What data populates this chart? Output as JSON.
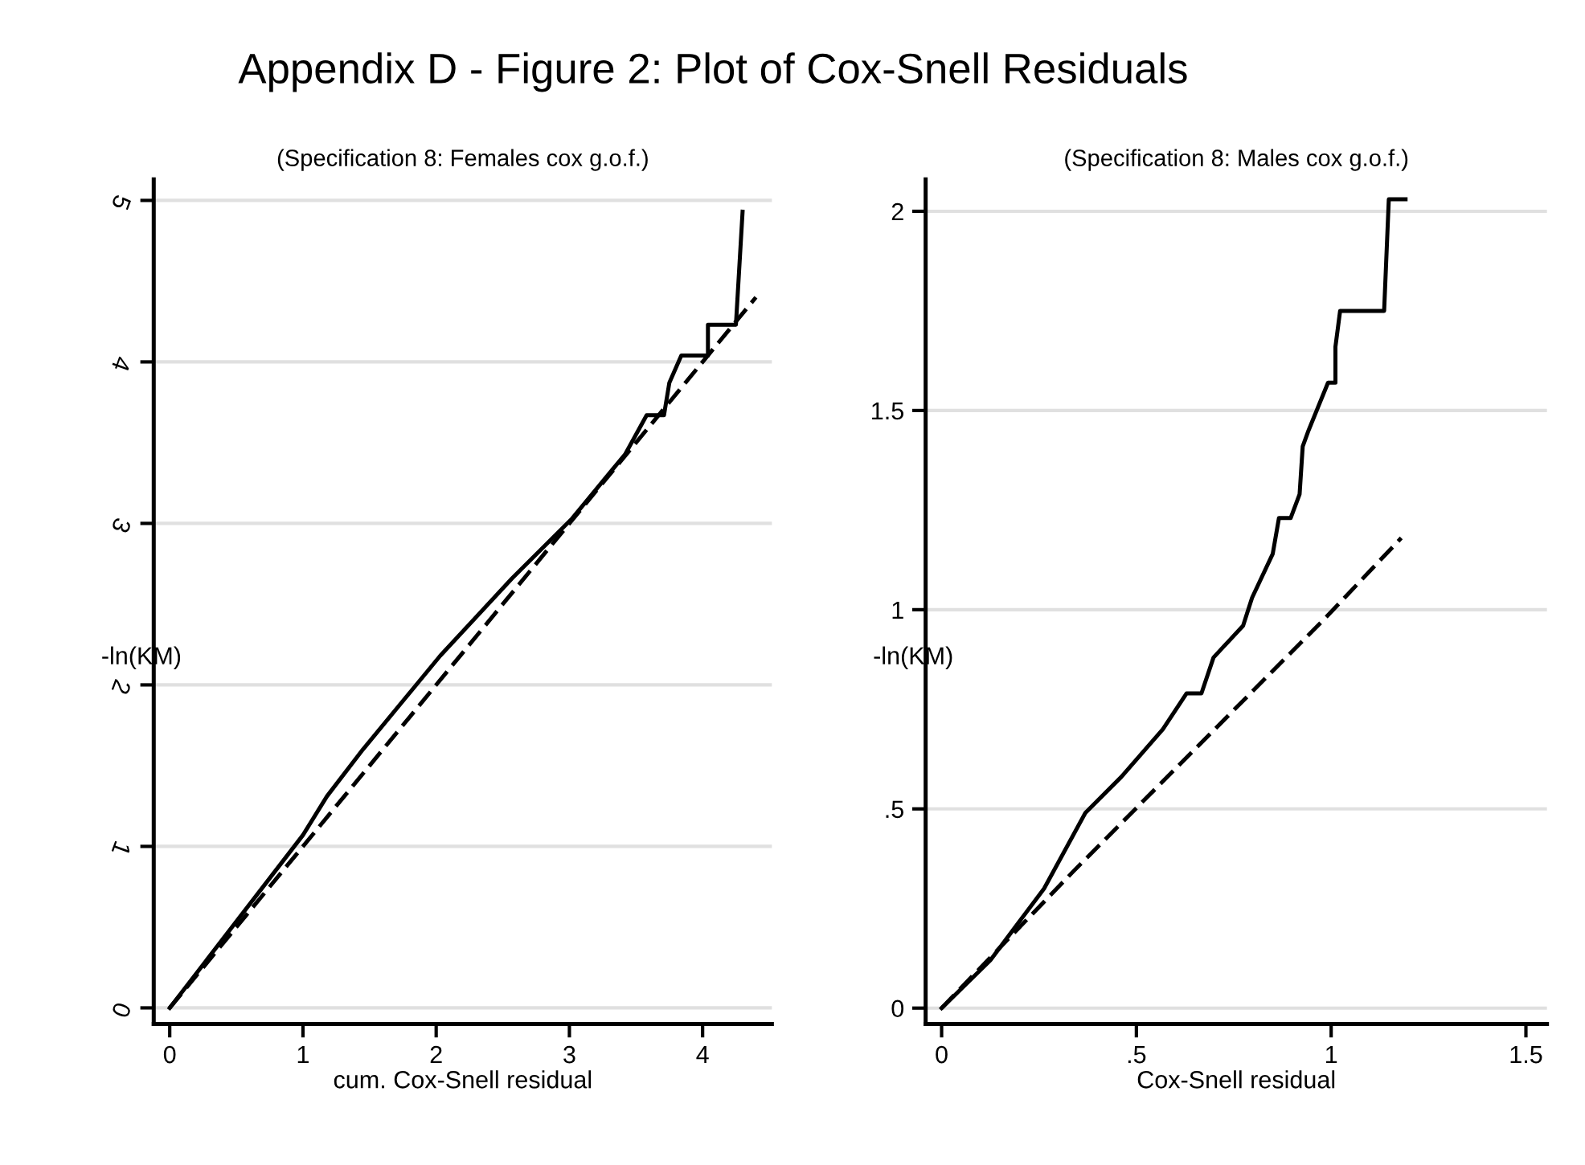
{
  "chart_data": [
    {
      "type": "line",
      "title": "Appendix D - Figure 2: Plot of Cox-Snell Residuals",
      "subtitle": "(Specification 8: Females cox g.o.f.)",
      "xlabel": "cum. Cox-Snell residual",
      "ylabel": "-ln(KM)",
      "xlim": [
        -0.12,
        4.52
      ],
      "ylim": [
        -0.1,
        5.13
      ],
      "xticks": [
        0,
        1,
        2,
        3,
        4
      ],
      "yticks": [
        0,
        1,
        2,
        3,
        4,
        5
      ],
      "grid": "y",
      "legend": false,
      "marker": "none",
      "series": [
        {
          "color": "#000000",
          "line_style": "solid",
          "x": [
            0,
            1.0,
            1.18,
            1.45,
            2.03,
            2.57,
            3.02,
            3.42,
            3.58,
            3.71,
            3.75,
            3.84,
            4.04,
            4.04,
            4.25,
            4.3
          ],
          "values": [
            0,
            1.07,
            1.31,
            1.6,
            2.18,
            2.66,
            3.03,
            3.43,
            3.67,
            3.67,
            3.87,
            4.04,
            4.04,
            4.23,
            4.23,
            4.93
          ]
        },
        {
          "color": "#000000",
          "line_style": "dashed",
          "x": [
            0,
            4.4
          ],
          "values": [
            0,
            4.4
          ]
        }
      ]
    },
    {
      "type": "line",
      "subtitle": "(Specification 8: Males cox g.o.f.)",
      "xlabel": "Cox-Snell residual",
      "ylabel": "-ln(KM)",
      "xlim": [
        -0.041,
        1.554
      ],
      "ylim": [
        -0.04,
        2.08
      ],
      "xticks": [
        0,
        {
          "value": 0.5,
          "label": ".5"
        },
        1,
        1.5
      ],
      "yticks": [
        0,
        {
          "value": 0.5,
          "label": ".5"
        },
        1,
        1.5,
        2
      ],
      "grid": "y",
      "legend": false,
      "marker": "none",
      "series": [
        {
          "color": "#000000",
          "line_style": "solid",
          "x": [
            0,
            0.125,
            0.263,
            0.369,
            0.461,
            0.568,
            0.629,
            0.667,
            0.698,
            0.774,
            0.797,
            0.85,
            0.866,
            0.896,
            0.919,
            0.927,
            0.942,
            0.992,
            1.011,
            1.011,
            1.023,
            1.136,
            1.148,
            1.191
          ],
          "values": [
            0,
            0.12,
            0.3,
            0.49,
            0.58,
            0.7,
            0.79,
            0.79,
            0.88,
            0.96,
            1.03,
            1.14,
            1.23,
            1.23,
            1.29,
            1.41,
            1.45,
            1.57,
            1.57,
            1.66,
            1.75,
            1.75,
            2.03,
            2.03
          ]
        },
        {
          "color": "#000000",
          "line_style": "dashed",
          "x": [
            0,
            0.34,
            0.98,
            1.18
          ],
          "values": [
            0,
            0.345,
            0.974,
            1.18
          ]
        }
      ]
    }
  ]
}
